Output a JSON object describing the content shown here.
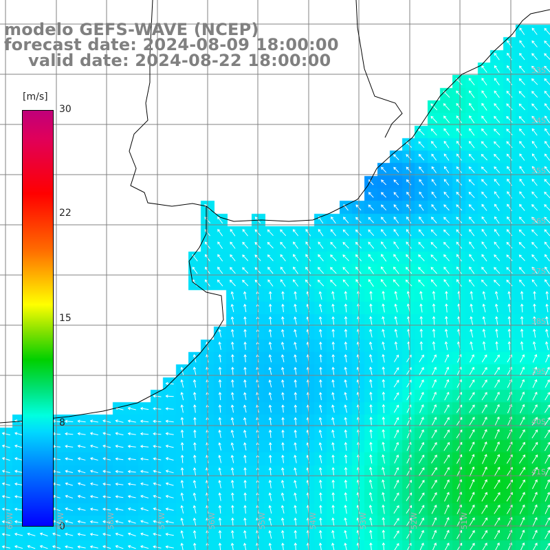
{
  "title": {
    "line1": "modelo GEFS-WAVE (NCEP)",
    "line2": "forecast date: 2024-08-09 18:00:00",
    "line3": "valid date: 2024-08-22 18:00:00"
  },
  "colorbar": {
    "unit": "[m/s]",
    "tick_labels": [
      "30",
      "22",
      "15",
      "8",
      "0"
    ],
    "ticks": [
      30,
      22,
      15,
      8,
      0
    ],
    "range": [
      0,
      30
    ]
  },
  "map_labels": {
    "lat": [
      "33S",
      "34S",
      "35S",
      "36S",
      "37S",
      "38S",
      "39S",
      "40S",
      "41S"
    ],
    "lon": [
      "60W",
      "59W",
      "58W",
      "57W",
      "56W",
      "55W",
      "54W",
      "53W",
      "52W",
      "51W"
    ]
  },
  "legend_colors": {
    "low": "#0000ff",
    "mid": "#00ffe0",
    "high": "#c0007a",
    "grid": "#808080",
    "coast": "#000000"
  },
  "field": {
    "description_variable": "wind speed and direction",
    "speed_range_shown": [
      4,
      12
    ]
  }
}
